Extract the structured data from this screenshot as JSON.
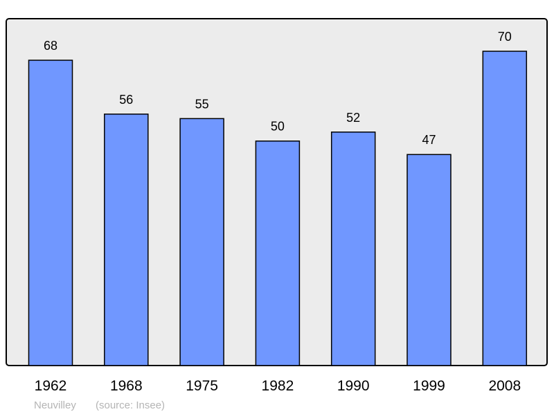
{
  "chart_data": {
    "type": "bar",
    "categories": [
      "1962",
      "1968",
      "1975",
      "1982",
      "1990",
      "1999",
      "2008"
    ],
    "values": [
      68,
      56,
      55,
      50,
      52,
      47,
      70
    ],
    "data_labels": [
      "68",
      "56",
      "55",
      "50",
      "52",
      "47",
      "70"
    ],
    "title": "",
    "xlabel": "",
    "ylabel": "",
    "ylim": [
      0,
      77
    ],
    "grid": false,
    "legend": "none",
    "colors": {
      "bar": "#7097ff",
      "plot_background": "#ececec",
      "frame": "#000000",
      "footer_text": "#b4b4b4"
    }
  },
  "footer": {
    "place": "Neuvilley",
    "source": "(source: Insee)"
  }
}
